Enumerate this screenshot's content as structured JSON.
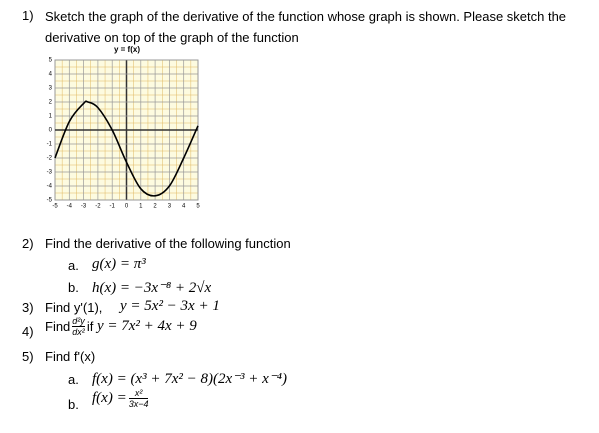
{
  "questions": [
    {
      "number": "1)",
      "text": "Sketch the graph of the derivative of the function whose graph is shown. Please sketch the derivative on top of the graph of the function"
    },
    {
      "number": "2)",
      "text": "Find the derivative of the following function",
      "parts": [
        {
          "label": "a.",
          "math": "g(x) = π³"
        },
        {
          "label": "b.",
          "math": "h(x) = −3x⁻⁸ + 2√x"
        }
      ]
    },
    {
      "number": "3)",
      "text": "Find y'(1),",
      "math": "y = 5x² − 3x + 1"
    },
    {
      "number": "4)",
      "text": "Find",
      "numerator": "d²y",
      "denominator": "dx²",
      "text2": "if",
      "math": "y = 7x² + 4x + 9"
    },
    {
      "number": "5)",
      "text": "Find f'(x)",
      "parts": [
        {
          "label": "a.",
          "math": "f(x) = (x³ + 7x² − 8)(2x⁻³ + x⁻⁴)"
        },
        {
          "label": "b.",
          "math": "f(x) =",
          "numerator": "x²",
          "denominator": "3x−4"
        }
      ]
    }
  ],
  "graph": {
    "type": "line",
    "title": "y = f(x)",
    "xlim": [
      -5,
      5
    ],
    "ylim": [
      -5,
      5
    ],
    "xticks": [
      -5,
      -4,
      -3,
      -2,
      -1,
      0,
      1,
      2,
      3,
      4,
      5
    ],
    "yticks": [
      5,
      4,
      3,
      2,
      1,
      0,
      -1,
      -2,
      -3,
      -4,
      -5
    ],
    "grid": true,
    "color": "#000000",
    "x": [
      -5,
      -4,
      -3,
      -2.7,
      -2,
      -1,
      0,
      1,
      2,
      3,
      4,
      5
    ],
    "values": [
      -2,
      0.6,
      1.9,
      2,
      1.6,
      0,
      -2.3,
      -4.2,
      -4.7,
      -4,
      -2,
      0.3
    ]
  }
}
